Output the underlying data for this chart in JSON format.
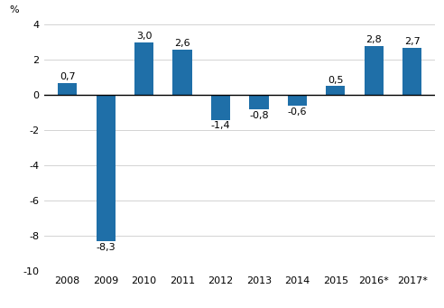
{
  "categories": [
    "2008",
    "2009",
    "2010",
    "2011",
    "2012",
    "2013",
    "2014",
    "2015",
    "2016*",
    "2017*"
  ],
  "values": [
    0.7,
    -8.3,
    3.0,
    2.6,
    -1.4,
    -0.8,
    -0.6,
    0.5,
    2.8,
    2.7
  ],
  "labels": [
    "0,7",
    "-8,3",
    "3,0",
    "2,6",
    "-1,4",
    "-0,8",
    "-0,6",
    "0,5",
    "2,8",
    "2,7"
  ],
  "bar_color": "#1F6FA8",
  "ylim": [
    -10,
    4
  ],
  "yticks": [
    -10,
    -8,
    -6,
    -4,
    -2,
    0,
    2,
    4
  ],
  "ylabel": "%",
  "background_color": "#ffffff",
  "grid_color": "#cccccc",
  "label_fontsize": 8,
  "axis_fontsize": 8
}
